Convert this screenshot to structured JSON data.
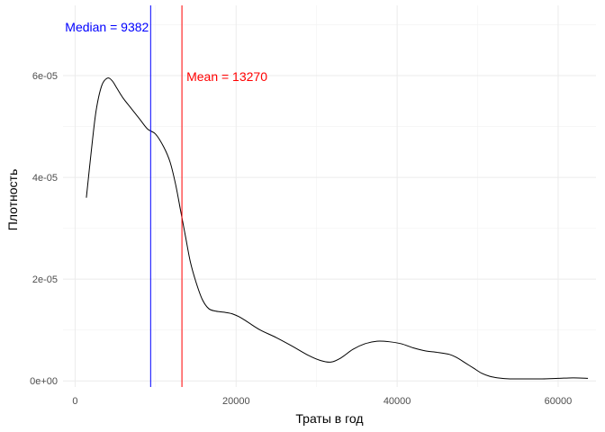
{
  "chart_data": {
    "type": "line",
    "title": "",
    "xlabel": "Траты в год",
    "ylabel": "Плотность",
    "xlim": [
      -1500,
      64700
    ],
    "ylim": [
      -1.2e-06,
      7.38e-05
    ],
    "x_ticks": [
      0,
      20000,
      40000,
      60000
    ],
    "x_tick_labels": [
      "0",
      "20000",
      "40000",
      "60000"
    ],
    "y_ticks": [
      0,
      2e-05,
      4e-05,
      6e-05
    ],
    "y_tick_labels": [
      "0e+00",
      "2e-05",
      "4e-05",
      "6e-05"
    ],
    "grid": true,
    "legend": "none",
    "series": [
      {
        "color": "#000000",
        "x": [
          1400,
          2000,
          2600,
          3300,
          4000,
          4600,
          5200,
          6000,
          7000,
          8000,
          9000,
          10000,
          11000,
          11800,
          12500,
          13100,
          13700,
          14300,
          15000,
          15800,
          16600,
          17500,
          18500,
          19500,
          20500,
          21500,
          23000,
          25000,
          27000,
          29000,
          30500,
          31800,
          33000,
          34500,
          36000,
          37500,
          39000,
          40500,
          42000,
          43500,
          45000,
          46500,
          47500,
          48500,
          49500,
          50500,
          51500,
          52500,
          54000,
          56000,
          58000,
          60000,
          62000,
          63700
        ],
        "y": [
          3.6e-05,
          4.5e-05,
          5.3e-05,
          5.8e-05,
          5.95e-05,
          5.9e-05,
          5.75e-05,
          5.55e-05,
          5.35e-05,
          5.15e-05,
          4.95e-05,
          4.85e-05,
          4.6e-05,
          4.3e-05,
          3.85e-05,
          3.35e-05,
          2.85e-05,
          2.35e-05,
          1.95e-05,
          1.6e-05,
          1.42e-05,
          1.37e-05,
          1.35e-05,
          1.32e-05,
          1.25e-05,
          1.15e-05,
          1e-05,
          8.5e-06,
          6.8e-06,
          5e-06,
          4e-06,
          3.7e-06,
          4.5e-06,
          6.2e-06,
          7.3e-06,
          7.8e-06,
          7.7e-06,
          7.3e-06,
          6.5e-06,
          5.9e-06,
          5.6e-06,
          5.2e-06,
          4.5e-06,
          3.5e-06,
          2.5e-06,
          1.5e-06,
          9e-07,
          6e-07,
          4e-07,
          4e-07,
          4e-07,
          5e-07,
          6e-07,
          5e-07
        ]
      }
    ],
    "vlines": [
      {
        "x": 9382,
        "color": "#0000ff",
        "label": "Median = 9382"
      },
      {
        "x": 13270,
        "color": "#ff0000",
        "label": "Mean = 13270"
      }
    ]
  }
}
